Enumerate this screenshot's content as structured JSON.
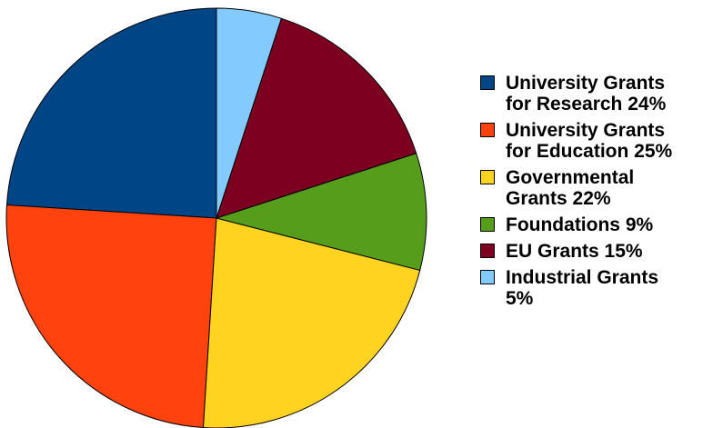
{
  "chart_data": {
    "type": "pie",
    "title": "",
    "legend_position": "right",
    "slices": [
      {
        "label": "University Grants\nfor Research 24%",
        "value": 24,
        "color": "#004586"
      },
      {
        "label": "University Grants\nfor Education 25%",
        "value": 25,
        "color": "#ff420e"
      },
      {
        "label": "Governmental\nGrants 22%",
        "value": 22,
        "color": "#ffd320"
      },
      {
        "label": "Foundations 9%",
        "value": 9,
        "color": "#579d1c"
      },
      {
        "label": "EU Grants 15%",
        "value": 15,
        "color": "#7e0021"
      },
      {
        "label": "Industrial Grants\n5%",
        "value": 5,
        "color": "#83caff"
      }
    ]
  }
}
